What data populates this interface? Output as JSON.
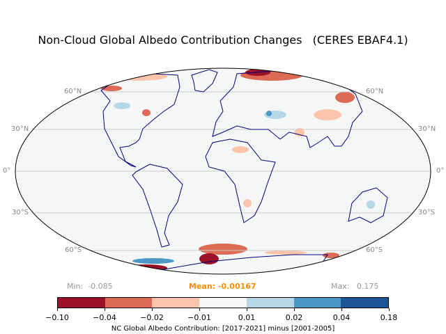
{
  "title": "Non-Cloud Global Albedo Contribution Changes   (CERES EBAF4.1)",
  "grid_labels": {
    "left": [
      "60°N",
      "30°N",
      "0°",
      "30°S",
      "60°S"
    ],
    "right": [
      "60°N",
      "30°N",
      "0°",
      "30°S",
      "60°S"
    ]
  },
  "stats": {
    "min": "Min:  -0.085",
    "mean": "Mean: -0.00167",
    "max": "Max:   0.175"
  },
  "colorbar": {
    "ticks": [
      "−0.10",
      "−0.04",
      "−0.02",
      "−0.01",
      "0.01",
      "0.02",
      "0.04",
      "0.18"
    ],
    "colors": [
      "#9b1127",
      "#dc6a55",
      "#fbc4ab",
      "#f5f7f6",
      "#b5d7e8",
      "#4b98c7",
      "#1b5598"
    ],
    "label": "NC Global Albedo Contribution: [2017-2021] minus [2001-2005]"
  },
  "colors": {
    "coast": "#00007f",
    "ocean": "#f5f7f6",
    "grid": "#cccccc",
    "mean": "#ff8c00"
  }
}
